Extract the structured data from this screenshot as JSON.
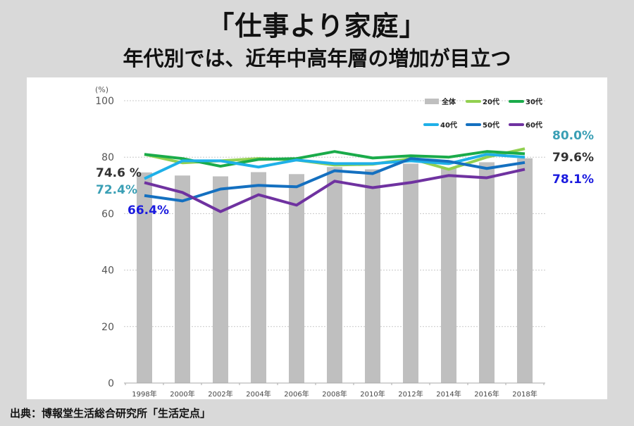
{
  "title": "「仕事より家庭」",
  "subtitle": "年代別では、近年中高年層の増加が目立つ",
  "source": "出典：博報堂生活総合研究所「生活定点」",
  "chart_data": {
    "type": "bar+line",
    "ylabel": "(%)",
    "ylim": [
      0,
      100
    ],
    "yticks": [
      0,
      20,
      40,
      60,
      80,
      100
    ],
    "grid": true,
    "legend_position": "top-right",
    "categories": [
      "1998年",
      "2000年",
      "2002年",
      "2004年",
      "2006年",
      "2008年",
      "2010年",
      "2012年",
      "2014年",
      "2016年",
      "2018年"
    ],
    "bar_series": {
      "name": "全体",
      "color": "#bfbfbf",
      "values": [
        74.6,
        73.5,
        73.2,
        74.7,
        74.0,
        76.5,
        75.7,
        77.7,
        76.2,
        78.2,
        79.6
      ]
    },
    "series": [
      {
        "name": "20代",
        "color": "#92d050",
        "values": [
          81.0,
          78.0,
          78.7,
          79.5,
          79.0,
          77.2,
          77.5,
          79.5,
          75.7,
          80.0,
          83.0
        ]
      },
      {
        "name": "30代",
        "color": "#1aab4a",
        "values": [
          81.0,
          79.5,
          76.8,
          79.2,
          79.5,
          82.0,
          79.7,
          80.5,
          80.0,
          82.0,
          81.2
        ]
      },
      {
        "name": "40代",
        "color": "#1fb0e8",
        "values": [
          72.4,
          78.7,
          78.7,
          76.5,
          79.0,
          77.7,
          77.7,
          78.7,
          77.7,
          81.0,
          80.0
        ]
      },
      {
        "name": "50代",
        "color": "#1470c0",
        "values": [
          66.4,
          64.5,
          68.7,
          70.0,
          69.5,
          75.2,
          74.2,
          79.5,
          78.5,
          76.0,
          78.1
        ]
      },
      {
        "name": "60代",
        "color": "#6f32a0",
        "values": [
          71.0,
          67.5,
          60.7,
          66.7,
          63.0,
          71.5,
          69.2,
          71.0,
          73.5,
          72.7,
          75.7
        ]
      }
    ],
    "annotations": [
      {
        "text": "74.6 %",
        "color": "#333333",
        "series": "全体",
        "point": "1998年"
      },
      {
        "text": "72.4%",
        "color": "#3a9fb5",
        "series": "40代",
        "point": "1998年"
      },
      {
        "text": "66.4%",
        "color": "#1a1adf",
        "series": "50代",
        "point": "1998年"
      },
      {
        "text": "80.0%",
        "color": "#3a9fb5",
        "series": "40代",
        "point": "2018年"
      },
      {
        "text": "79.6%",
        "color": "#333333",
        "series": "全体",
        "point": "2018年"
      },
      {
        "text": "78.1%",
        "color": "#1a1adf",
        "series": "50代",
        "point": "2018年"
      }
    ]
  }
}
